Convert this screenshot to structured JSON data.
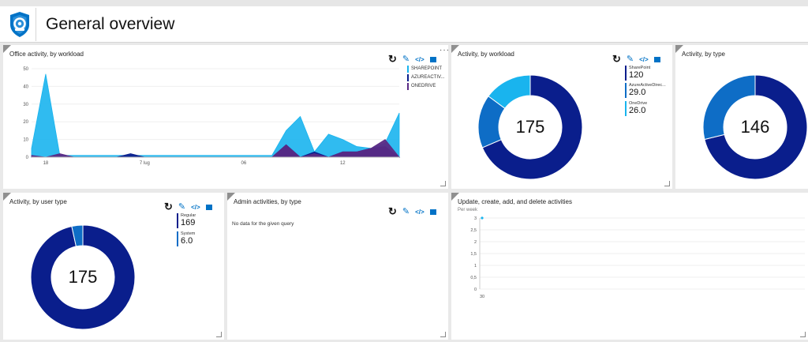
{
  "header": {
    "title": "General overview"
  },
  "colors": {
    "navy": "#0a1e8c",
    "mid_blue": "#0e6dc6",
    "light_blue": "#19b4ee",
    "purple": "#5a2a85",
    "accent": "#0072c6"
  },
  "toolbar": {
    "refresh_icon": "↻",
    "edit_icon": "✎",
    "code_icon": "</>",
    "copy_icon": "copy-icon",
    "more_icon": "···"
  },
  "tiles": {
    "office_activity": {
      "title": "Office activity, by workload",
      "legend": [
        "SHAREPOINT",
        "AZUREACTIV...",
        "ONEDRIVE"
      ]
    },
    "activity_workload": {
      "title": "Activity, by workload",
      "total": "175",
      "legend": [
        {
          "name": "SharePoint",
          "value": "120"
        },
        {
          "name": "AzureActiveDirec...",
          "value": "29.0"
        },
        {
          "name": "OneDrive",
          "value": "26.0"
        }
      ]
    },
    "activity_type": {
      "title": "Activity, by type",
      "total": "146"
    },
    "activity_user_type": {
      "title": "Activity, by user type",
      "total": "175",
      "legend": [
        {
          "name": "Regular",
          "value": "169"
        },
        {
          "name": "System",
          "value": "6.0"
        }
      ]
    },
    "admin_activities": {
      "title": "Admin activities, by type",
      "empty_text": "No data for the given query"
    },
    "update_activities": {
      "title": "Update, create, add, and delete activities",
      "subtitle": "Per week"
    }
  },
  "chart_data": [
    {
      "type": "area",
      "chart": "office_activity",
      "x": [
        0,
        1,
        2,
        3,
        4,
        5,
        6,
        7,
        8,
        9,
        10,
        11,
        12,
        13,
        14,
        15,
        16,
        17,
        18,
        19,
        20,
        21,
        22,
        23,
        24,
        25,
        26
      ],
      "x_tick_labels": [
        {
          "index": 1,
          "label": "18"
        },
        {
          "index": 8,
          "label": "7 lug"
        },
        {
          "index": 15,
          "label": "06"
        },
        {
          "index": 22,
          "label": "12"
        }
      ],
      "series": [
        {
          "name": "SHAREPOINT",
          "color": "#19b4ee",
          "values": [
            5,
            47,
            1,
            1,
            1,
            1,
            1,
            1,
            1,
            1,
            1,
            1,
            1,
            1,
            1,
            1,
            1,
            1,
            15,
            23,
            3,
            13,
            10,
            6,
            5,
            8,
            25
          ]
        },
        {
          "name": "AZUREACTIV...",
          "color": "#0a1e8c",
          "values": [
            0,
            0,
            0,
            0,
            0,
            0,
            0,
            2,
            0,
            0,
            0,
            0,
            0,
            0,
            0,
            0,
            0,
            0,
            7,
            0,
            3,
            0,
            3,
            3,
            5,
            6,
            0
          ]
        },
        {
          "name": "ONEDRIVE",
          "color": "#5a2a85",
          "values": [
            1,
            0,
            2,
            0,
            0,
            0,
            0,
            0,
            0,
            0,
            0,
            0,
            0,
            0,
            0,
            0,
            0,
            0,
            7,
            0,
            2,
            0,
            3,
            3,
            5,
            10,
            0
          ]
        }
      ],
      "y_ticks": [
        0,
        10,
        20,
        30,
        40,
        50
      ],
      "ylim": [
        0,
        50
      ]
    },
    {
      "type": "pie",
      "chart": "activity_workload",
      "labels": [
        "SharePoint",
        "AzureActiveDirectory",
        "OneDrive"
      ],
      "values": [
        120,
        29,
        26
      ],
      "colors": [
        "#0a1e8c",
        "#0e6dc6",
        "#19b4ee"
      ]
    },
    {
      "type": "pie",
      "chart": "activity_type",
      "values": [
        104,
        42
      ],
      "colors": [
        "#0a1e8c",
        "#0e6dc6"
      ]
    },
    {
      "type": "pie",
      "chart": "activity_user_type",
      "labels": [
        "Regular",
        "System"
      ],
      "values": [
        169,
        6
      ],
      "colors": [
        "#0a1e8c",
        "#0e6dc6"
      ]
    },
    {
      "type": "line",
      "chart": "update_activities",
      "x_tick_labels": [
        "30"
      ],
      "y_ticks": [
        "0",
        "0,5",
        "1",
        "1,5",
        "2",
        "2,5",
        "3"
      ],
      "ylim": [
        0,
        3
      ],
      "series": [
        {
          "values": [
            3
          ],
          "color": "#19b4ee"
        }
      ]
    }
  ]
}
